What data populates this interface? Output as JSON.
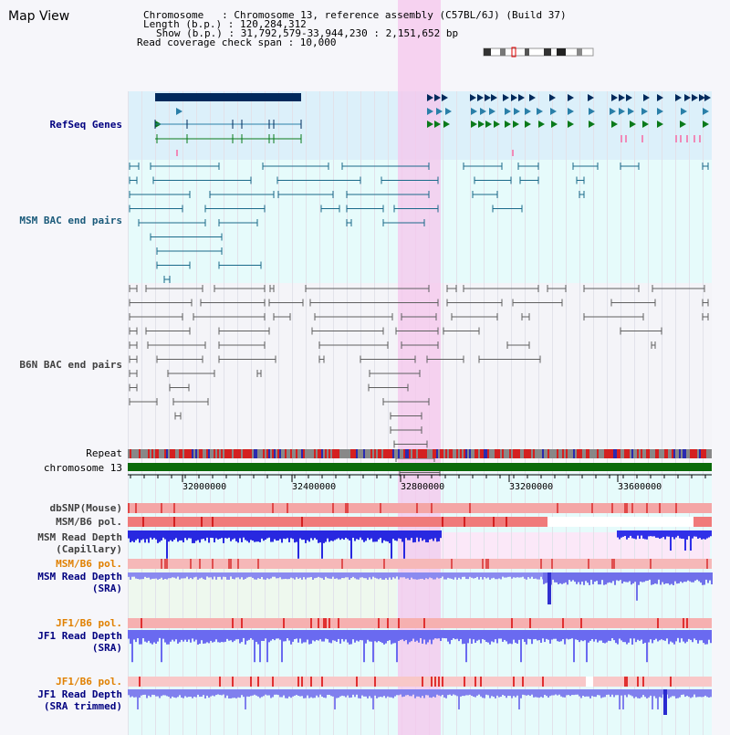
{
  "page_title": "Map View",
  "info": {
    "chromosome_line": "Chromosome   : Chromosome 13, reference assembly (C57BL/6J) (Build 37)",
    "length_line": "Length (b.p.) : 120,284,312",
    "show_line": "Show (b.p.) : 31,792,579-33,944,230 : 2,151,652 bp",
    "coverage_line": "Read coverage check span : 10,000"
  },
  "tracks": {
    "refseq": "RefSeq Genes",
    "msm_bac": "MSM BAC end pairs",
    "b6n_bac": "B6N BAC end pairs",
    "repeat": "Repeat",
    "chromosome": "chromosome 13",
    "dbsnp": "dbSNP(Mouse)",
    "msm_b6_pol_1": "MSM/B6 pol.",
    "msm_read_depth_cap_1": "MSM Read Depth",
    "msm_read_depth_cap_2": "(Capillary)",
    "msm_b6_pol_2": "MSM/B6 pol.",
    "msm_read_depth_sra_1": "MSM Read Depth",
    "msm_read_depth_sra_2": "(SRA)",
    "jf1_b6_pol_1": "JF1/B6 pol.",
    "jf1_read_depth_sra_1": "JF1 Read Depth",
    "jf1_read_depth_sra_2": "(SRA)",
    "jf1_b6_pol_2": "JF1/B6 pol.",
    "jf1_read_depth_trim_1": "JF1 Read Depth",
    "jf1_read_depth_trim_2": "(SRA trimmed)"
  },
  "axis_ticks": [
    "32000000",
    "32400000",
    "32800000",
    "33200000",
    "33600000"
  ],
  "colors": {
    "gene_navy": "#002a5c",
    "gene_blue": "#2a7fa8",
    "gene_green": "#0a7a1a",
    "msm_bac": "#1a6a8a",
    "b6n_bac": "#606060",
    "highlight": "#f5c6ec",
    "chromosome": "#0a6a0a",
    "label_blue": "#000080",
    "label_orange": "#e08000",
    "label_gray": "#404040"
  }
}
